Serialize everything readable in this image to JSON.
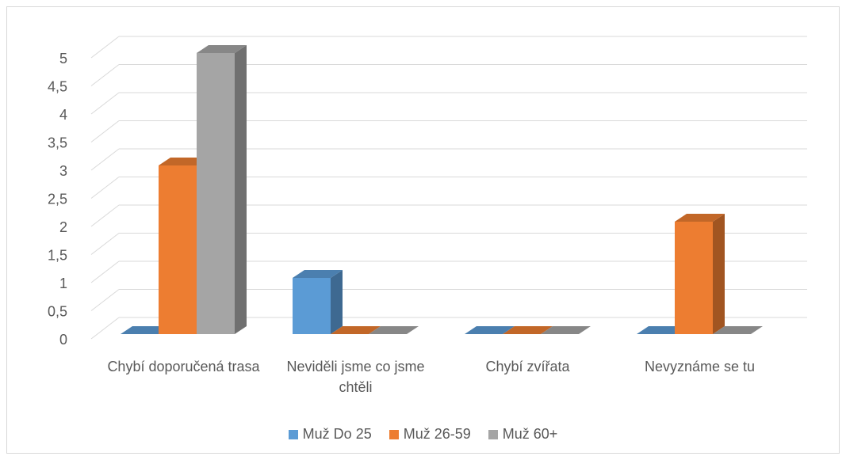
{
  "chart_data": {
    "type": "bar3d",
    "categories": [
      "Chybí doporučená trasa",
      "Neviděli jsme co jsme chtěli",
      "Chybí zvířata",
      "Nevyznáme se tu"
    ],
    "series": [
      {
        "name": "Muž Do 25",
        "color": "#5b9bd5",
        "values": [
          0,
          1,
          0,
          0
        ]
      },
      {
        "name": "Muž 26-59",
        "color": "#ed7d31",
        "values": [
          3,
          0,
          0,
          2
        ]
      },
      {
        "name": "Muž 60+",
        "color": "#a5a5a5",
        "values": [
          5,
          0,
          0,
          0
        ]
      }
    ],
    "ylim": [
      0,
      5
    ],
    "yticks": [
      0,
      {
        "value": 0.5,
        "label": "0,5"
      },
      1,
      {
        "value": 1.5,
        "label": "1,5"
      },
      2,
      {
        "value": 2.5,
        "label": "2,5"
      },
      3,
      {
        "value": 3.5,
        "label": "3,5"
      },
      4,
      {
        "value": 4.5,
        "label": "4,5"
      },
      5
    ],
    "grid": true,
    "legend": "bottom"
  }
}
